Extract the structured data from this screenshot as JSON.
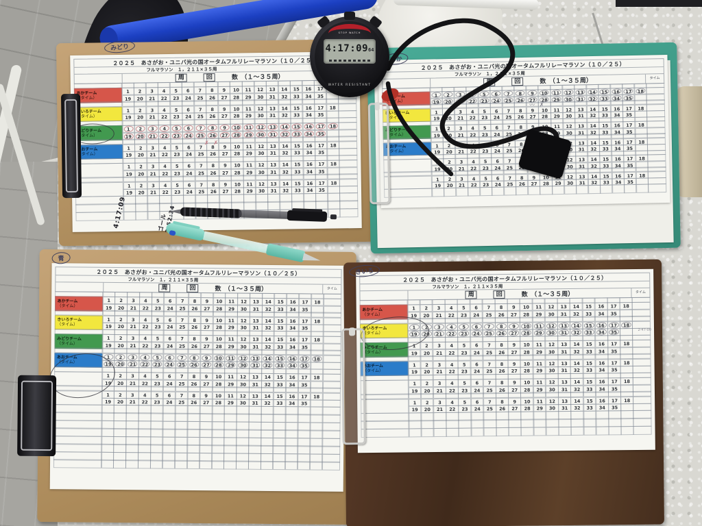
{
  "scene": {
    "colors": {
      "table": "#d9d8d2",
      "paving": "#a2a19c",
      "baton_blue": "#1c40c2",
      "board_tan": "#b5946a",
      "board_teal": "#3da08c",
      "board_walnut": "#4a3021",
      "team_red": "#d6564a",
      "team_yellow": "#f2e73e",
      "team_green": "#42994f",
      "team_blue": "#2b7cc9"
    }
  },
  "form": {
    "title": "２０２５　あさがお・ユニバ光の国オータムフルリレーマラソン（１０／２５）",
    "subtitle": "フルマラソン　１，２１１×３５周",
    "lap_label": "周",
    "kai_label": "回",
    "count_label": "数　（１～３５周）",
    "time_label": "タイム",
    "teams": [
      {
        "name": "あかチーム",
        "sub": "（タイム）"
      },
      {
        "name": "きいろチーム",
        "sub": "（タイム）"
      },
      {
        "name": "みどりチーム",
        "sub": "（タイム）"
      },
      {
        "name": "あおチーム",
        "sub": "（タイム）"
      }
    ],
    "row1": [
      "1",
      "2",
      "3",
      "4",
      "5",
      "6",
      "7",
      "8",
      "9",
      "10",
      "11",
      "12",
      "13",
      "14",
      "15",
      "16",
      "17",
      "18"
    ],
    "row2": [
      "19",
      "20",
      "21",
      "22",
      "23",
      "24",
      "25",
      "26",
      "27",
      "28",
      "29",
      "30",
      "31",
      "32",
      "33",
      "34",
      "35",
      ""
    ]
  },
  "clipboards": [
    {
      "id": "tl",
      "handwritten_label": "みどり",
      "marked_team": 2,
      "empty_rows": 3,
      "scribble": "✗ ✗",
      "notes": [
        "4:17:09",
        "ゴール\n2:52:34"
      ]
    },
    {
      "id": "tr",
      "handwritten_label": "あか",
      "marked_team": 0,
      "empty_rows": 1,
      "scribble": "〰 ✗"
    },
    {
      "id": "bl",
      "handwritten_label": "青",
      "marked_team": 3,
      "empty_rows": 8
    },
    {
      "id": "br",
      "handwritten_label": "きいろ",
      "marked_team": 1,
      "empty_rows": 3,
      "time_scribble": "2-47-00"
    }
  ],
  "stopwatch": {
    "time": "4:17:09",
    "fraction": "64",
    "brand_band": "STOP WATCH",
    "bottom_text": "WATER RESISTANT"
  }
}
